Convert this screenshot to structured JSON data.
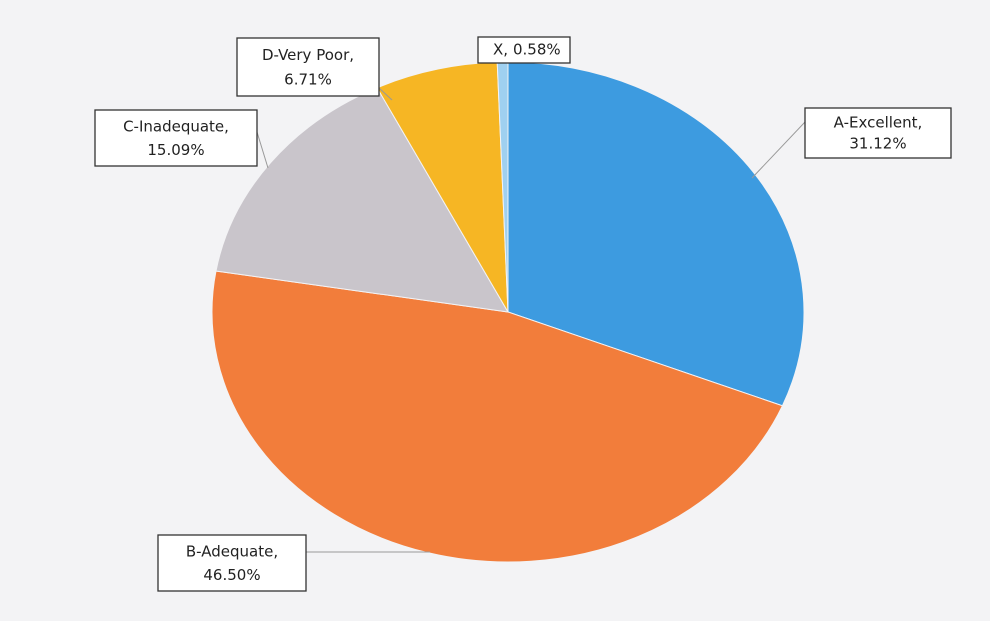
{
  "chart_data": {
    "type": "pie",
    "categories": [
      "A-Excellent,",
      "B-Adequate,",
      "C-Inadequate,",
      "D-Very Poor,",
      "X,"
    ],
    "values": [
      31.12,
      46.5,
      15.09,
      6.71,
      0.58
    ],
    "value_labels": [
      "31.12%",
      "46.50%",
      "15.09%",
      "6.71%",
      "0.58%"
    ],
    "colors": [
      "#3d9be0",
      "#f27d3b",
      "#c9c5cb",
      "#f6b624",
      "#9fd0f0"
    ]
  }
}
